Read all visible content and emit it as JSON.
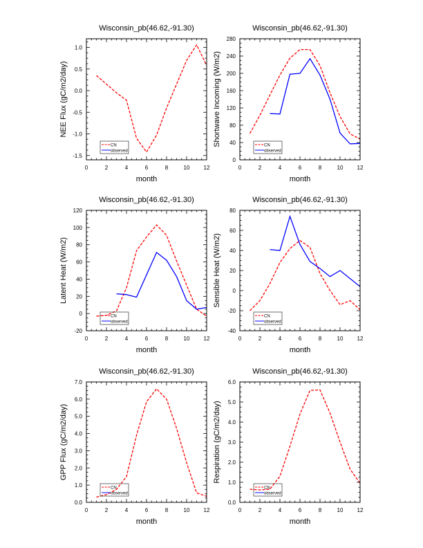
{
  "legend": {
    "cn_label": "CN",
    "observed_label": "observed"
  },
  "colors": {
    "cn": "#ff0000",
    "observed": "#0000ff",
    "axis": "#000000"
  },
  "chart_data": [
    {
      "type": "line",
      "title": "Wisconsin_pb(46.62,-91.30)",
      "xlabel": "month",
      "ylabel": "NEE Flux (gC/m2/day)",
      "xlim": [
        0,
        12
      ],
      "ylim": [
        -1.6,
        1.2
      ],
      "xticks": [
        0,
        2,
        4,
        6,
        8,
        10,
        12
      ],
      "xtick_labels": [
        "0",
        "2",
        "4",
        "6",
        "8",
        "10",
        "12"
      ],
      "yticks": [
        -1.5,
        -1.0,
        -0.5,
        0.0,
        0.5,
        1.0
      ],
      "ytick_labels": [
        "-1.5",
        "-1.0",
        "-0.5",
        "0.0",
        "0.5",
        "1.0"
      ],
      "legend_position": "bottom-left",
      "series": [
        {
          "name": "CN",
          "x": [
            1,
            2,
            3,
            4,
            5,
            6,
            7,
            8,
            9,
            10,
            11,
            12
          ],
          "y": [
            0.35,
            0.15,
            -0.05,
            -0.22,
            -1.1,
            -1.42,
            -1.03,
            -0.4,
            0.15,
            0.7,
            1.06,
            0.58
          ]
        },
        {
          "name": "observed",
          "x": [],
          "y": []
        }
      ]
    },
    {
      "type": "line",
      "title": "Wisconsin_pb(46.62,-91.30)",
      "xlabel": "month",
      "ylabel": "Shortwave Incoming (W/m2)",
      "xlim": [
        0,
        12
      ],
      "ylim": [
        0,
        280
      ],
      "xticks": [
        0,
        2,
        4,
        6,
        8,
        10,
        12
      ],
      "xtick_labels": [
        "0",
        "2",
        "4",
        "6",
        "8",
        "10",
        "12"
      ],
      "yticks": [
        0,
        40,
        80,
        120,
        160,
        200,
        240,
        280
      ],
      "ytick_labels": [
        "0",
        "40",
        "80",
        "120",
        "160",
        "200",
        "240",
        "280"
      ],
      "legend_position": "bottom-left",
      "series": [
        {
          "name": "CN",
          "x": [
            1,
            2,
            3,
            4,
            5,
            6,
            7,
            8,
            9,
            10,
            11,
            12
          ],
          "y": [
            61,
            103,
            150,
            196,
            235,
            255,
            255,
            218,
            155,
            100,
            60,
            48
          ]
        },
        {
          "name": "observed",
          "x": [
            3,
            4,
            5,
            6,
            7,
            8,
            9,
            10,
            11,
            12
          ],
          "y": [
            107,
            106,
            198,
            200,
            234,
            196,
            140,
            62,
            37,
            38
          ]
        }
      ]
    },
    {
      "type": "line",
      "title": "Wisconsin_pb(46.62,-91.30)",
      "xlabel": "month",
      "ylabel": "Latent Heat (W/m2)",
      "xlim": [
        0,
        12
      ],
      "ylim": [
        -20,
        120
      ],
      "xticks": [
        0,
        2,
        4,
        6,
        8,
        10,
        12
      ],
      "xtick_labels": [
        "0",
        "2",
        "4",
        "6",
        "8",
        "10",
        "12"
      ],
      "yticks": [
        -20,
        0,
        20,
        40,
        60,
        80,
        100,
        120
      ],
      "ytick_labels": [
        "-20",
        "0",
        "20",
        "40",
        "60",
        "80",
        "100",
        "120"
      ],
      "legend_position": "bottom-left",
      "series": [
        {
          "name": "CN",
          "x": [
            1,
            2,
            3,
            4,
            5,
            6,
            7,
            8,
            9,
            10,
            11,
            12
          ],
          "y": [
            -3,
            -2,
            3,
            30,
            73,
            89,
            103,
            91,
            61,
            33,
            5,
            -3
          ]
        },
        {
          "name": "observed",
          "x": [
            3,
            4,
            5,
            6,
            7,
            8,
            9,
            10,
            11,
            12
          ],
          "y": [
            23,
            22,
            19,
            45,
            71,
            62,
            43,
            15,
            5,
            7
          ]
        }
      ]
    },
    {
      "type": "line",
      "title": "Wisconsin_pb(46.62,-91.30)",
      "xlabel": "month",
      "ylabel": "Sensible Heat (W/m2)",
      "xlim": [
        0,
        12
      ],
      "ylim": [
        -40,
        80
      ],
      "xticks": [
        0,
        2,
        4,
        6,
        8,
        10,
        12
      ],
      "xtick_labels": [
        "0",
        "2",
        "4",
        "6",
        "8",
        "10",
        "12"
      ],
      "yticks": [
        -40,
        -20,
        0,
        20,
        40,
        60,
        80
      ],
      "ytick_labels": [
        "-40",
        "-20",
        "0",
        "20",
        "40",
        "60",
        "80"
      ],
      "legend_position": "bottom-left",
      "series": [
        {
          "name": "CN",
          "x": [
            1,
            2,
            3,
            4,
            5,
            6,
            7,
            8,
            9,
            10,
            11,
            12
          ],
          "y": [
            -20,
            -10,
            7,
            28,
            42,
            50,
            43,
            17,
            0,
            -14,
            -10,
            -19
          ]
        },
        {
          "name": "observed",
          "x": [
            3,
            4,
            5,
            6,
            7,
            8,
            9,
            10,
            11,
            12
          ],
          "y": [
            41,
            40,
            74,
            46,
            29,
            22,
            14,
            20,
            12,
            4
          ]
        }
      ]
    },
    {
      "type": "line",
      "title": "Wisconsin_pb(46.62,-91.30)",
      "xlabel": "month",
      "ylabel": "GPP Flux (gC/m2/day)",
      "xlim": [
        0,
        12
      ],
      "ylim": [
        0,
        7
      ],
      "xticks": [
        0,
        2,
        4,
        6,
        8,
        10,
        12
      ],
      "xtick_labels": [
        "0",
        "2",
        "4",
        "6",
        "8",
        "10",
        "12"
      ],
      "yticks": [
        0,
        1,
        2,
        3,
        4,
        5,
        6,
        7
      ],
      "ytick_labels": [
        "0.0",
        "1.0",
        "2.0",
        "3.0",
        "4.0",
        "5.0",
        "6.0",
        "7.0"
      ],
      "legend_position": "bottom-left",
      "series": [
        {
          "name": "CN",
          "x": [
            1,
            2,
            3,
            4,
            5,
            6,
            7,
            8,
            9,
            10,
            11,
            12
          ],
          "y": [
            0.3,
            0.45,
            0.75,
            1.5,
            3.9,
            5.85,
            6.6,
            6.0,
            4.3,
            2.3,
            0.55,
            0.35
          ]
        },
        {
          "name": "observed",
          "x": [],
          "y": []
        }
      ]
    },
    {
      "type": "line",
      "title": "Wisconsin_pb(46.62,-91.30)",
      "xlabel": "month",
      "ylabel": "Respiration (gC/m2/day)",
      "xlim": [
        0,
        12
      ],
      "ylim": [
        0,
        6
      ],
      "xticks": [
        0,
        2,
        4,
        6,
        8,
        10,
        12
      ],
      "xtick_labels": [
        "0",
        "2",
        "4",
        "6",
        "8",
        "10",
        "12"
      ],
      "yticks": [
        0,
        1,
        2,
        3,
        4,
        5,
        6
      ],
      "ytick_labels": [
        "0.0",
        "1.0",
        "2.0",
        "3.0",
        "4.0",
        "5.0",
        "6.0"
      ],
      "legend_position": "bottom-left",
      "series": [
        {
          "name": "CN",
          "x": [
            1,
            2,
            3,
            4,
            5,
            6,
            7,
            8,
            9,
            10,
            11,
            12
          ],
          "y": [
            0.65,
            0.62,
            0.65,
            1.3,
            2.8,
            4.4,
            5.58,
            5.6,
            4.45,
            3.0,
            1.65,
            0.95
          ]
        },
        {
          "name": "observed",
          "x": [],
          "y": []
        }
      ]
    }
  ]
}
